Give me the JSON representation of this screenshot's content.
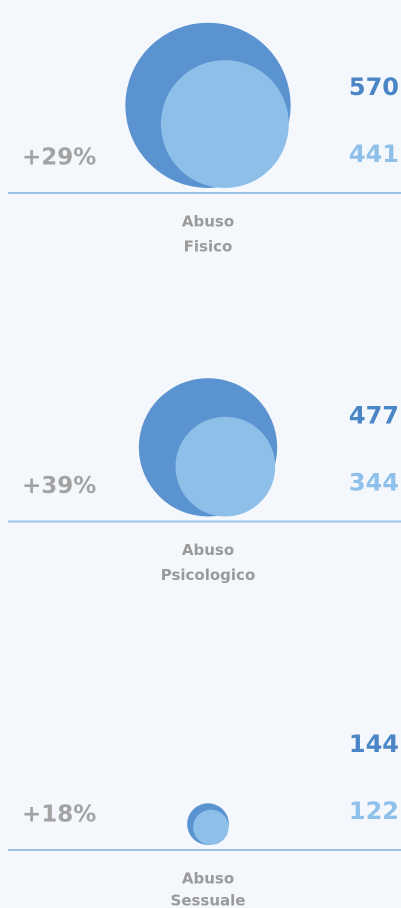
{
  "chart_data": {
    "type": "bubble",
    "categories": [
      [
        "Abuso",
        "Fisico"
      ],
      [
        "Abuso",
        "Psicologico"
      ],
      [
        "Abuso",
        "Sessuale"
      ]
    ],
    "series": [
      {
        "color": "#5b93d0",
        "label_color": "#4a85c6",
        "values": [
          570,
          477,
          144
        ]
      },
      {
        "color": "#8dbfe9",
        "label_color": "#8fc0ea",
        "values": [
          441,
          344,
          122
        ]
      }
    ],
    "changes": [
      29,
      39,
      18
    ],
    "change_labels": [
      "+29%",
      "+39%",
      "+18%"
    ]
  }
}
